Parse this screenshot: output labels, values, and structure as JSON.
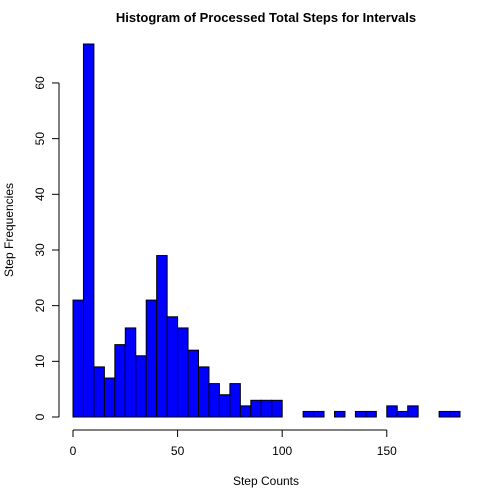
{
  "chart_data": {
    "type": "bar",
    "title": "Histogram of Processed Total Steps for Intervals",
    "xlabel": "Step Counts",
    "ylabel": "Step Frequencies",
    "bin_width": 5,
    "bin_start": 0,
    "values": [
      21,
      67,
      9,
      7,
      13,
      16,
      11,
      21,
      29,
      18,
      16,
      12,
      9,
      6,
      4,
      6,
      2,
      3,
      3,
      3,
      0,
      0,
      1,
      1,
      0,
      1,
      0,
      1,
      1,
      0,
      2,
      1,
      2,
      0,
      0,
      1,
      1
    ],
    "xlim": [
      0,
      185
    ],
    "ylim": [
      0,
      67
    ],
    "x_ticks": [
      0,
      50,
      100,
      150
    ],
    "y_ticks": [
      0,
      10,
      20,
      30,
      40,
      50,
      60
    ],
    "bar_color": "#0000ff",
    "bar_border": "#000000",
    "grid": false
  }
}
